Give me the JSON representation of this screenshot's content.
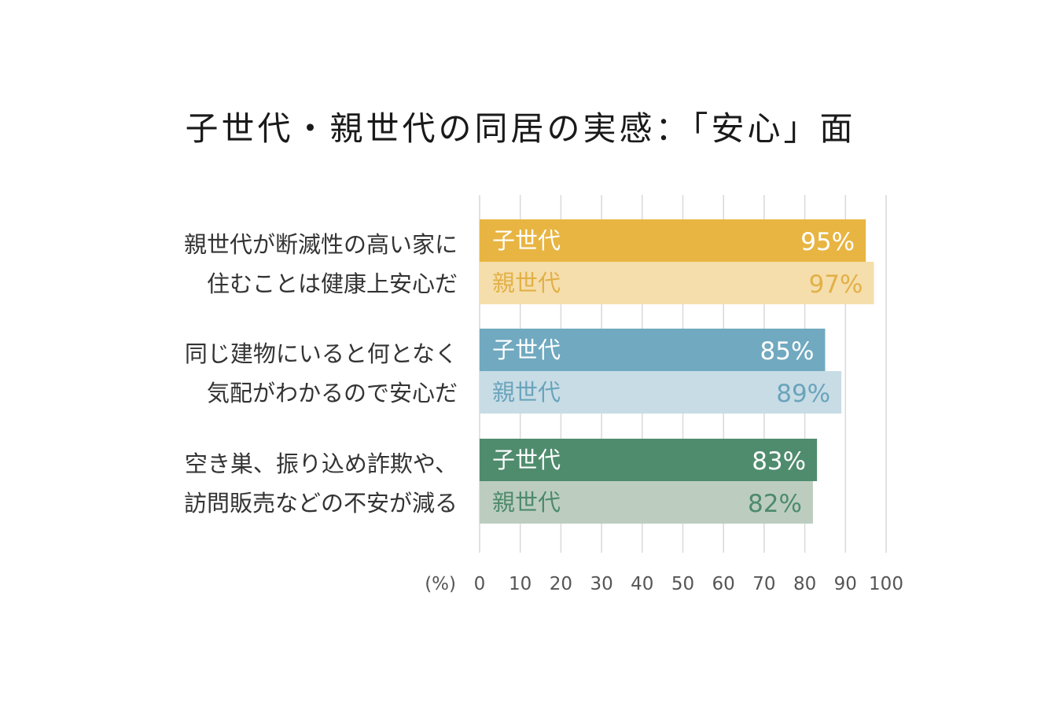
{
  "chart_data": {
    "type": "bar",
    "orientation": "horizontal",
    "title": "子世代・親世代の同居の実感：「安心」面",
    "unit_label": "(%)",
    "xlim": [
      0,
      100
    ],
    "x_ticks": [
      "0",
      "10",
      "20",
      "30",
      "40",
      "50",
      "60",
      "70",
      "80",
      "90",
      "100"
    ],
    "grid": true,
    "categories": [
      {
        "lines": [
          "親世代が断滅性の高い家に",
          "住むことは健康上安心だ"
        ],
        "bars": [
          {
            "series": "子世代",
            "value": 95,
            "label": "95%",
            "color": "#e8b543",
            "text_color": "#ffffff"
          },
          {
            "series": "親世代",
            "value": 97,
            "label": "97%",
            "color": "#f5deab",
            "text_color": "#e2b047"
          }
        ]
      },
      {
        "lines": [
          "同じ建物にいると何となく",
          "気配がわかるので安心だ"
        ],
        "bars": [
          {
            "series": "子世代",
            "value": 85,
            "label": "85%",
            "color": "#70a9c0",
            "text_color": "#ffffff"
          },
          {
            "series": "親世代",
            "value": 89,
            "label": "89%",
            "color": "#c8dce6",
            "text_color": "#6aa4bb"
          }
        ]
      },
      {
        "lines": [
          "空き巣、振り込め詐欺や、",
          "訪問販売などの不安が減る"
        ],
        "bars": [
          {
            "series": "子世代",
            "value": 83,
            "label": "83%",
            "color": "#4f8c6e",
            "text_color": "#ffffff"
          },
          {
            "series": "親世代",
            "value": 82,
            "label": "82%",
            "color": "#bccdbf",
            "text_color": "#4d8a6b"
          }
        ]
      }
    ]
  }
}
